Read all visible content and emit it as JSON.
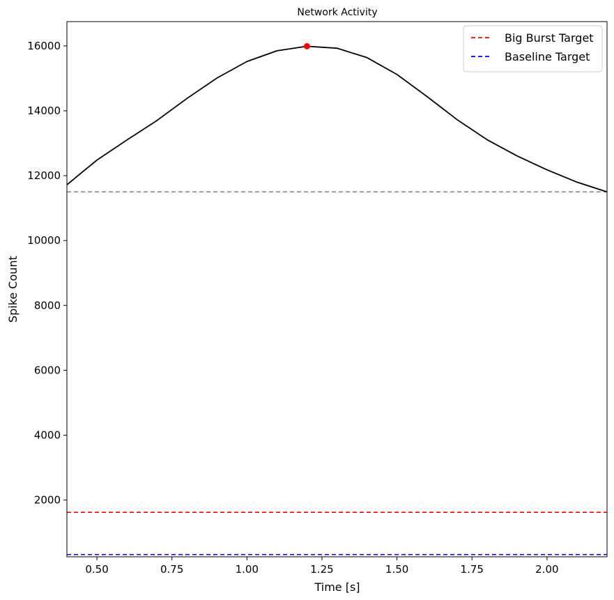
{
  "chart_data": {
    "type": "line",
    "title": "Network Activity",
    "xlabel": "Time [s]",
    "ylabel": "Spike Count",
    "xlim": [
      0.4,
      2.2
    ],
    "ylim": [
      250,
      16750
    ],
    "xticks": [
      0.5,
      0.75,
      1.0,
      1.25,
      1.5,
      1.75,
      2.0
    ],
    "xtick_labels": [
      "0.50",
      "0.75",
      "1.00",
      "1.25",
      "1.50",
      "1.75",
      "2.00"
    ],
    "yticks": [
      2000,
      4000,
      6000,
      8000,
      10000,
      12000,
      14000,
      16000
    ],
    "ytick_labels": [
      "2000",
      "4000",
      "6000",
      "8000",
      "10000",
      "12000",
      "14000",
      "16000"
    ],
    "grid": false,
    "legend_position": "top-right",
    "series": [
      {
        "role": "activity",
        "color": "#000000",
        "style": "solid",
        "x": [
          0.4,
          0.5,
          0.6,
          0.7,
          0.8,
          0.9,
          1.0,
          1.1,
          1.2,
          1.3,
          1.4,
          1.5,
          1.6,
          1.7,
          1.8,
          1.9,
          2.0,
          2.1,
          2.2
        ],
        "y": [
          11720,
          12480,
          13100,
          13700,
          14380,
          15010,
          15520,
          15850,
          15990,
          15930,
          15640,
          15120,
          14440,
          13730,
          13110,
          12610,
          12180,
          11800,
          11500
        ]
      }
    ],
    "peak_marker": {
      "x": 1.2,
      "y": 15990,
      "color": "#ff0000"
    },
    "reference_lines": [
      {
        "name": "Big Burst Target",
        "y": 1620,
        "color": "#ff0000",
        "style": "dashed",
        "in_legend": true
      },
      {
        "name": "Baseline Target",
        "y": 320,
        "color": "#0000ff",
        "style": "dashed",
        "in_legend": true
      },
      {
        "name": "",
        "y": 11500,
        "color": "#808080",
        "style": "dashed",
        "in_legend": false
      }
    ]
  }
}
